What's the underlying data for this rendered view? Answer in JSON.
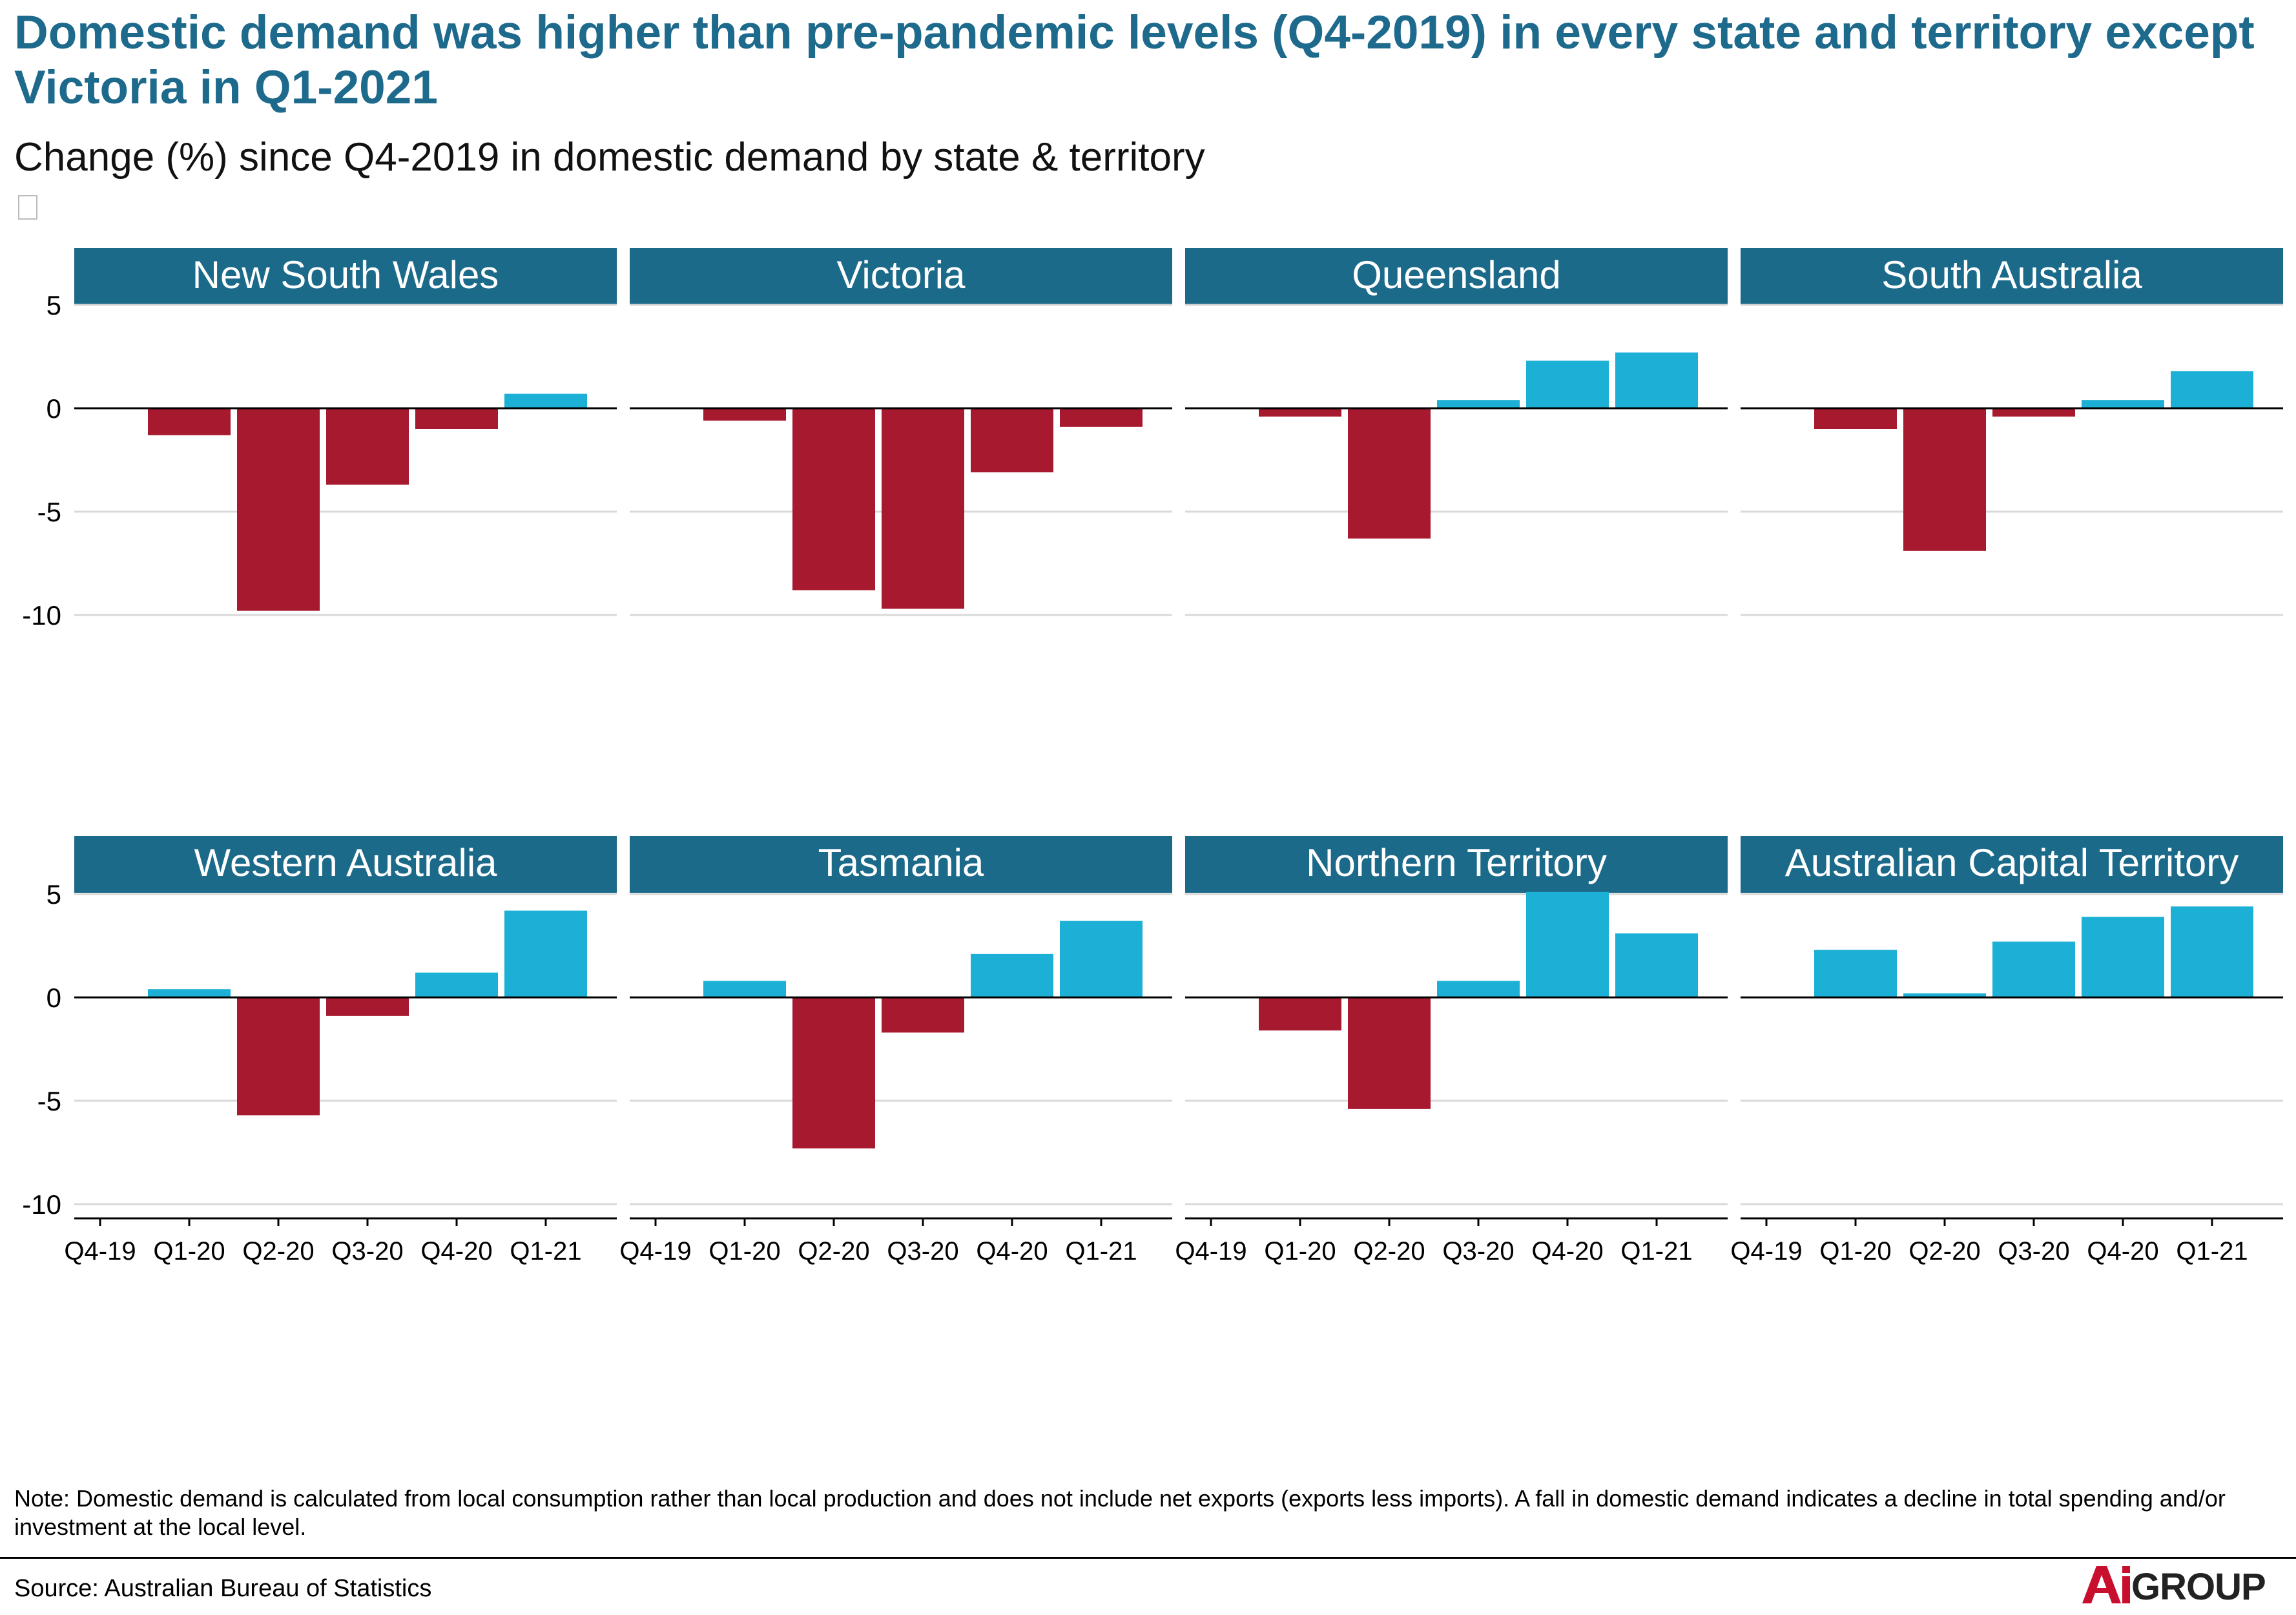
{
  "title": "Domestic demand was higher than pre-pandemic levels (Q4-2019) in every state and territory except Victoria in Q1-2021",
  "subtitle": "Change (%) since Q4-2019 in domestic demand by state & territory",
  "note": "Note: Domestic demand is calculated from local consumption rather than local production and does not include net exports (exports less imports). A fall in domestic demand indicates a decline in total spending and/or investment at the local level.",
  "source": "Source: Australian Bureau of Statistics",
  "logo": {
    "text": "GROUP"
  },
  "colors": {
    "negative": "#a6192e",
    "positive": "#1cb0d6",
    "panel_header": "#1c6a8a",
    "gridline": "#d9d9d9",
    "title": "#1e6a8c"
  },
  "chart_data": {
    "type": "bar",
    "categories": [
      "Q4-19",
      "Q1-20",
      "Q2-20",
      "Q3-20",
      "Q4-20",
      "Q1-21"
    ],
    "ylim": [
      -10,
      5
    ],
    "yticks": [
      5,
      0,
      -5,
      -10
    ],
    "grid": true,
    "panels": [
      {
        "name": "New South Wales",
        "values": [
          0,
          -1.3,
          -9.8,
          -3.7,
          -1.0,
          0.7
        ]
      },
      {
        "name": "Victoria",
        "values": [
          0,
          -0.6,
          -8.8,
          -9.7,
          -3.1,
          -0.9
        ]
      },
      {
        "name": "Queensland",
        "values": [
          0,
          -0.4,
          -6.3,
          0.4,
          2.3,
          2.7
        ]
      },
      {
        "name": "South Australia",
        "values": [
          0,
          -1.0,
          -6.9,
          -0.4,
          0.4,
          1.8
        ]
      },
      {
        "name": "Western Australia",
        "values": [
          0,
          0.4,
          -5.7,
          -0.9,
          1.2,
          4.2
        ]
      },
      {
        "name": "Tasmania",
        "values": [
          0,
          0.8,
          -7.3,
          -1.7,
          2.1,
          3.7
        ]
      },
      {
        "name": "Northern Territory",
        "values": [
          0,
          -1.6,
          -5.4,
          0.8,
          5.1,
          3.1
        ]
      },
      {
        "name": "Australian Capital Territory",
        "values": [
          0,
          2.3,
          0.2,
          2.7,
          3.9,
          4.4
        ]
      }
    ]
  }
}
